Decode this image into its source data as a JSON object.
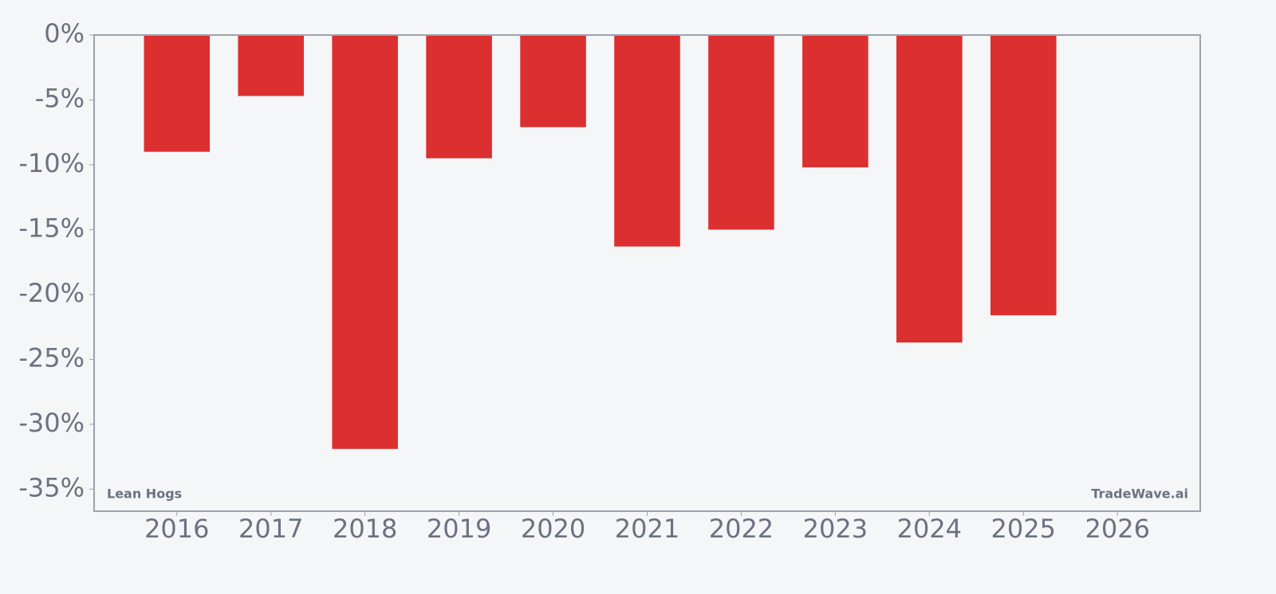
{
  "chart_data": {
    "type": "bar",
    "categories": [
      "2016",
      "2017",
      "2018",
      "2019",
      "2020",
      "2021",
      "2022",
      "2023",
      "2024",
      "2025",
      "2026"
    ],
    "values": [
      -9.0,
      -4.7,
      -31.9,
      -9.5,
      -7.1,
      -16.3,
      -15.0,
      -10.2,
      -23.7,
      -21.6,
      null
    ],
    "color": "#dc2f2f",
    "ylim": [
      -36.7,
      0
    ],
    "yticks": [
      {
        "value": 0,
        "label": "0%"
      },
      {
        "value": -5,
        "label": "-5%"
      },
      {
        "value": -10,
        "label": "-10%"
      },
      {
        "value": -15,
        "label": "-15%"
      },
      {
        "value": -20,
        "label": "-20%"
      },
      {
        "value": -25,
        "label": "-25%"
      },
      {
        "value": -30,
        "label": "-30%"
      },
      {
        "value": -35,
        "label": "-35%"
      }
    ],
    "grid": false,
    "annotations": [
      "Lean Hogs",
      "TradeWave.ai"
    ]
  }
}
